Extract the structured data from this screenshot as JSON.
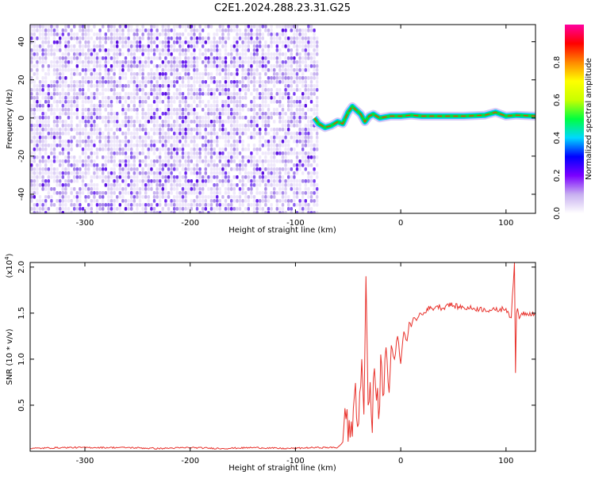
{
  "title": "C2E1.2024.288.23.31.G25",
  "chart_data": [
    {
      "type": "heatmap",
      "title": "C2E1.2024.288.23.31.G25",
      "xlabel": "Height of straight line (km)",
      "ylabel": "Frequency (Hz)",
      "xlim": [
        -352,
        128
      ],
      "ylim": [
        -50,
        49
      ],
      "x_ticks": [
        -300,
        -200,
        -100,
        0,
        100
      ],
      "y_ticks": [
        -40,
        -20,
        0,
        20,
        40
      ],
      "colorbar": {
        "label": "Normalized spectral amplitude",
        "range": [
          0,
          1
        ],
        "ticks": [
          "0.0",
          "0.2",
          "0.4",
          "0.6",
          "0.8"
        ],
        "colormap": [
          "#ffffff",
          "#c8b0f0",
          "#7b00ff",
          "#0000ff",
          "#00d8ff",
          "#00ff40",
          "#c8ff00",
          "#ffff00",
          "#ff8800",
          "#ff0000",
          "#ff00a0"
        ]
      },
      "noise_region": {
        "x_range": [
          -352,
          -80
        ],
        "freq_range": [
          -50,
          49
        ],
        "level": "low (0.05-0.25)"
      },
      "signal_track": {
        "x": [
          -82,
          -78,
          -72,
          -66,
          -60,
          -55,
          -50,
          -46,
          -42,
          -38,
          -34,
          -30,
          -26,
          -20,
          -10,
          0,
          10,
          20,
          40,
          60,
          80,
          90,
          95,
          100,
          110,
          128
        ],
        "frequency": [
          0,
          -3,
          -5,
          -4,
          -2,
          -3,
          3,
          6,
          4,
          2,
          -2,
          1,
          2,
          0,
          1,
          1,
          1.5,
          1,
          1,
          1,
          1.5,
          3,
          2,
          1,
          1.5,
          1
        ]
      }
    },
    {
      "type": "line",
      "xlabel": "Height of straight line (km)",
      "ylabel": "SNR (10 * v/v)",
      "y_multiplier": "(x10",
      "y_multiplier_exp": "4",
      "xlim": [
        -352,
        128
      ],
      "ylim": [
        0,
        2.05
      ],
      "x_ticks": [
        -300,
        -200,
        -100,
        0,
        100
      ],
      "y_ticks": [
        "0.5",
        "1.0",
        "1.5",
        "2.0"
      ],
      "series": [
        {
          "color": "#e8312b",
          "x": [
            -352,
            -320,
            -290,
            -260,
            -230,
            -200,
            -170,
            -140,
            -110,
            -80,
            -60,
            -55,
            -52,
            -48,
            -44,
            -40,
            -37,
            -35,
            -33,
            -31,
            -29,
            -27,
            -25,
            -23,
            -21,
            -19,
            -17,
            -15,
            -12,
            -9,
            -6,
            -3,
            0,
            3,
            6,
            8,
            10,
            12,
            15,
            18,
            21,
            25,
            30,
            35,
            40,
            45,
            50,
            55,
            60,
            70,
            80,
            90,
            100,
            105,
            108,
            109,
            110,
            111,
            112,
            113,
            115,
            120,
            128
          ],
          "values": [
            0.03,
            0.04,
            0.04,
            0.04,
            0.03,
            0.04,
            0.03,
            0.04,
            0.03,
            0.04,
            0.04,
            0.1,
            0.35,
            0.15,
            0.6,
            0.3,
            1.0,
            0.4,
            1.9,
            0.5,
            0.75,
            0.2,
            0.9,
            0.55,
            0.35,
            1.05,
            0.6,
            1.0,
            0.75,
            1.15,
            1.0,
            1.25,
            0.95,
            1.3,
            1.2,
            1.4,
            1.35,
            1.45,
            1.42,
            1.5,
            1.48,
            1.55,
            1.55,
            1.58,
            1.55,
            1.6,
            1.58,
            1.57,
            1.56,
            1.55,
            1.54,
            1.53,
            1.55,
            1.45,
            2.05,
            0.85,
            1.5,
            1.55,
            1.48,
            1.45,
            1.5,
            1.5,
            1.5
          ]
        }
      ]
    }
  ]
}
